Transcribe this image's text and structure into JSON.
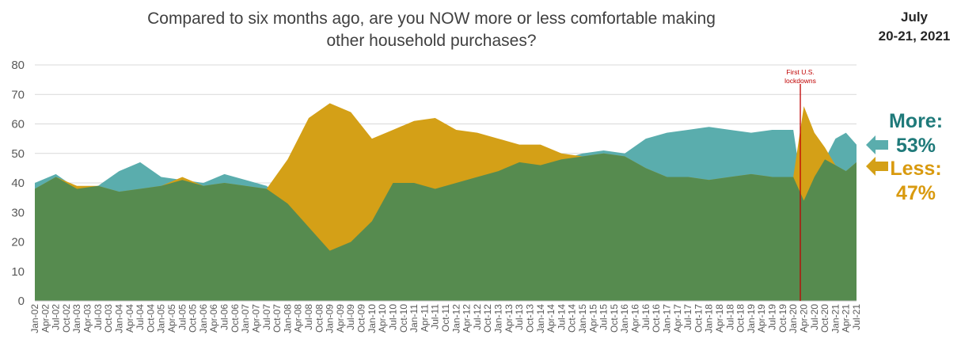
{
  "header": {
    "title_line1": "Compared to six months ago, are you NOW more or less comfortable making",
    "title_line2": "other household purchases?",
    "date_line1": "July",
    "date_line2": "20-21, 2021"
  },
  "legend": {
    "more_label": "More:",
    "more_value": "53%",
    "less_label": "Less:",
    "less_value": "47%"
  },
  "colors": {
    "more": "#5aadad",
    "less": "#d4a017",
    "overlap": "#568b4f",
    "more_text": "#1f7a7a",
    "less_text": "#d99a0f",
    "annotation": "#c00000"
  },
  "chart_data": {
    "type": "area",
    "title": "Compared to six months ago, are you NOW more or less comfortable making other household purchases?",
    "ylim": [
      0,
      80
    ],
    "yticks": [
      0,
      10,
      20,
      30,
      40,
      50,
      60,
      70,
      80
    ],
    "grid": true,
    "x_start": "Jan-02",
    "x_end": "Jul-21",
    "x_tick_labels": [
      "Jan-02",
      "Apr-02",
      "Jul-02",
      "Oct-02",
      "Jan-03",
      "Apr-03",
      "Jul-03",
      "Oct-03",
      "Jan-04",
      "Apr-04",
      "Jul-04",
      "Oct-04",
      "Jan-05",
      "Apr-05",
      "Jul-05",
      "Oct-05",
      "Jan-06",
      "Apr-06",
      "Jul-06",
      "Oct-06",
      "Jan-07",
      "Apr-07",
      "Jul-07",
      "Oct-07",
      "Jan-08",
      "Apr-08",
      "Jul-08",
      "Oct-08",
      "Jan-09",
      "Apr-09",
      "Jul-09",
      "Oct-09",
      "Jan-10",
      "Apr-10",
      "Jul-10",
      "Oct-10",
      "Jan-11",
      "Apr-11",
      "Jul-11",
      "Oct-11",
      "Jan-12",
      "Apr-12",
      "Jul-12",
      "Oct-12",
      "Jan-13",
      "Apr-13",
      "Jul-13",
      "Oct-13",
      "Jan-14",
      "Apr-14",
      "Jul-14",
      "Oct-14",
      "Jan-15",
      "Apr-15",
      "Jul-15",
      "Oct-15",
      "Jan-16",
      "Apr-16",
      "Jul-16",
      "Oct-16",
      "Jan-17",
      "Apr-17",
      "Jul-17",
      "Oct-17",
      "Jan-18",
      "Apr-18",
      "Jul-18",
      "Oct-18",
      "Jan-19",
      "Apr-19",
      "Jul-19",
      "Oct-19",
      "Jan-20",
      "Apr-20",
      "Jul-20",
      "Oct-20",
      "Jan-21",
      "Apr-21",
      "Jul-21"
    ],
    "annotation": {
      "x": "Mar-20",
      "text_line1": "First U.S.",
      "text_line2": "lockdowns"
    },
    "series": [
      {
        "name": "More",
        "x": [
          "Jan-02",
          "Jul-02",
          "Jan-03",
          "Jul-03",
          "Jan-04",
          "Jul-04",
          "Jan-05",
          "Jul-05",
          "Jan-06",
          "Jul-06",
          "Jan-07",
          "Jul-07",
          "Jan-08",
          "Jul-08",
          "Jan-09",
          "Jul-09",
          "Jan-10",
          "Jul-10",
          "Jan-11",
          "Jul-11",
          "Jan-12",
          "Jul-12",
          "Jan-13",
          "Jul-13",
          "Jan-14",
          "Jul-14",
          "Jan-15",
          "Jul-15",
          "Jan-16",
          "Jul-16",
          "Jan-17",
          "Jul-17",
          "Jan-18",
          "Jul-18",
          "Jan-19",
          "Jul-19",
          "Jan-20",
          "Apr-20",
          "Jul-20",
          "Oct-20",
          "Jan-21",
          "Apr-21",
          "Jul-21"
        ],
        "values": [
          40,
          43,
          38,
          39,
          44,
          47,
          42,
          41,
          40,
          43,
          41,
          39,
          33,
          25,
          17,
          20,
          27,
          40,
          40,
          38,
          40,
          42,
          44,
          47,
          46,
          48,
          50,
          51,
          50,
          55,
          57,
          58,
          59,
          58,
          57,
          58,
          58,
          34,
          42,
          48,
          55,
          57,
          53
        ]
      },
      {
        "name": "Less",
        "x": [
          "Jan-02",
          "Jul-02",
          "Jan-03",
          "Jul-03",
          "Jan-04",
          "Jul-04",
          "Jan-05",
          "Jul-05",
          "Jan-06",
          "Jul-06",
          "Jan-07",
          "Jul-07",
          "Jan-08",
          "Jul-08",
          "Jan-09",
          "Jul-09",
          "Jan-10",
          "Jul-10",
          "Jan-11",
          "Jul-11",
          "Jan-12",
          "Jul-12",
          "Jan-13",
          "Jul-13",
          "Jan-14",
          "Jul-14",
          "Jan-15",
          "Jul-15",
          "Jan-16",
          "Jul-16",
          "Jan-17",
          "Jul-17",
          "Jan-18",
          "Jul-18",
          "Jan-19",
          "Jul-19",
          "Jan-20",
          "Apr-20",
          "Jul-20",
          "Oct-20",
          "Jan-21",
          "Apr-21",
          "Jul-21"
        ],
        "values": [
          38,
          42,
          39,
          39,
          37,
          38,
          39,
          42,
          39,
          40,
          39,
          38,
          48,
          62,
          67,
          64,
          55,
          58,
          61,
          62,
          58,
          57,
          55,
          53,
          53,
          50,
          49,
          50,
          49,
          45,
          42,
          42,
          41,
          42,
          43,
          42,
          42,
          66,
          57,
          52,
          46,
          44,
          47
        ]
      }
    ]
  }
}
